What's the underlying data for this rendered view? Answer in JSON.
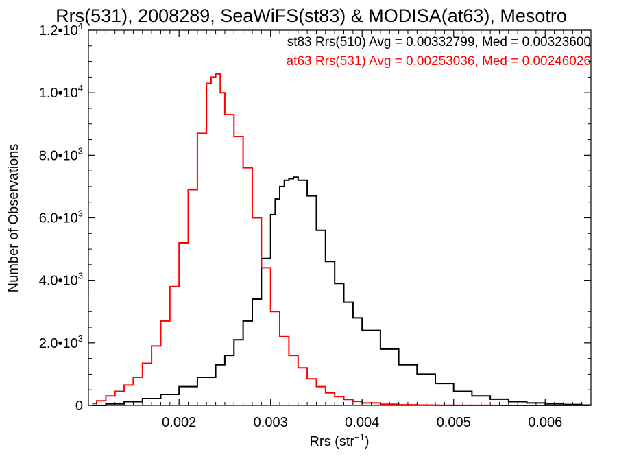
{
  "chart_data": {
    "type": "line",
    "step": true,
    "title": "Rrs(531), 2008289, SeaWiFS(st83) & MODISA(at63), Mesotro",
    "xlabel": "Rrs (str",
    "xlabel_sup": "−1",
    "xlabel_end": ")",
    "ylabel": "Number of Observations",
    "xlim": [
      0.00101,
      0.0065
    ],
    "ylim": [
      0,
      12000
    ],
    "grid": false,
    "x_ticks": [
      {
        "value": 0.002,
        "label": "0.002"
      },
      {
        "value": 0.003,
        "label": "0.003"
      },
      {
        "value": 0.004,
        "label": "0.004"
      },
      {
        "value": 0.005,
        "label": "0.005"
      },
      {
        "value": 0.006,
        "label": "0.006"
      }
    ],
    "y_ticks": [
      {
        "value": 0,
        "mant": "0",
        "exp": ""
      },
      {
        "value": 2000,
        "mant": "2.0•10",
        "exp": "3"
      },
      {
        "value": 4000,
        "mant": "4.0•10",
        "exp": "3"
      },
      {
        "value": 6000,
        "mant": "6.0•10",
        "exp": "3"
      },
      {
        "value": 8000,
        "mant": "8.0•10",
        "exp": "3"
      },
      {
        "value": 10000,
        "mant": "1.0•10",
        "exp": "4"
      },
      {
        "value": 12000,
        "mant": "1.2•10",
        "exp": "4"
      }
    ],
    "annotations": [
      {
        "text": "st83 Rrs(510) Avg = 0.00332799, Med = 0.00323600",
        "color": "#000000"
      },
      {
        "text": "at63 Rrs(531) Avg = 0.00253036, Med = 0.00246026",
        "color": "#ff0000"
      }
    ],
    "series": [
      {
        "color": "#000000",
        "x": [
          0.00105,
          0.0012,
          0.0014,
          0.0016,
          0.0018,
          0.002,
          0.0022,
          0.0024,
          0.0025,
          0.0026,
          0.0027,
          0.0028,
          0.0029,
          0.003,
          0.00305,
          0.0031,
          0.00315,
          0.0032,
          0.00325,
          0.0033,
          0.0034,
          0.0035,
          0.0036,
          0.0037,
          0.0038,
          0.0039,
          0.004,
          0.0042,
          0.0044,
          0.0046,
          0.0048,
          0.005,
          0.0052,
          0.0054,
          0.0056,
          0.0058,
          0.006,
          0.0062,
          0.0064
        ],
        "y": [
          0,
          50,
          120,
          220,
          350,
          600,
          900,
          1300,
          1600,
          2100,
          2700,
          3400,
          4700,
          6100,
          6600,
          7000,
          7200,
          7250,
          7300,
          7200,
          6700,
          5600,
          4600,
          3900,
          3300,
          2800,
          2400,
          1800,
          1300,
          1000,
          700,
          450,
          300,
          200,
          120,
          80,
          50,
          30,
          10
        ]
      },
      {
        "color": "#ff0000",
        "x": [
          0.00105,
          0.0011,
          0.0012,
          0.0013,
          0.0014,
          0.0015,
          0.0016,
          0.0017,
          0.0018,
          0.0019,
          0.002,
          0.0021,
          0.0022,
          0.0023,
          0.00235,
          0.0024,
          0.00245,
          0.0025,
          0.0026,
          0.0027,
          0.0028,
          0.0029,
          0.003,
          0.0031,
          0.0032,
          0.0033,
          0.0034,
          0.0035,
          0.0036,
          0.0037,
          0.0038,
          0.0039,
          0.004,
          0.0042,
          0.0044,
          0.0046,
          0.0048,
          0.005,
          0.0055,
          0.006,
          0.0065
        ],
        "y": [
          60,
          150,
          300,
          450,
          650,
          900,
          1350,
          1900,
          2700,
          3800,
          5200,
          6900,
          8700,
          10300,
          10500,
          10600,
          10000,
          9300,
          8600,
          7600,
          6000,
          4400,
          3000,
          2200,
          1600,
          1200,
          850,
          600,
          400,
          280,
          190,
          130,
          80,
          40,
          20,
          10,
          5,
          2,
          0,
          0,
          0
        ]
      }
    ]
  }
}
